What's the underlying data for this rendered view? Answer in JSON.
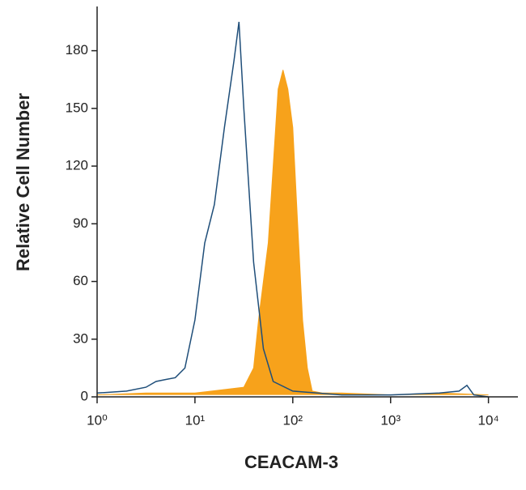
{
  "chart_data": {
    "type": "histogram-overlay",
    "xlabel": "CEACAM-3",
    "ylabel": "Relative Cell Number",
    "xscale": "log",
    "xlim": [
      1,
      20000
    ],
    "ylim": [
      0,
      203
    ],
    "xticks": [
      {
        "value": 1,
        "label": "10⁰"
      },
      {
        "value": 10,
        "label": "10¹"
      },
      {
        "value": 100,
        "label": "10²"
      },
      {
        "value": 1000,
        "label": "10³"
      },
      {
        "value": 10000,
        "label": "10⁴"
      }
    ],
    "yticks": [
      0,
      30,
      60,
      90,
      120,
      150,
      180
    ],
    "series": [
      {
        "color": "#f7a21b",
        "fill": true,
        "x": [
          1,
          3.16,
          10,
          31.6,
          39.8,
          44.7,
          50.1,
          56.2,
          63.1,
          70.8,
          79.4,
          89.1,
          100,
          112,
          126,
          141,
          158,
          200,
          316,
          1000,
          3160,
          10000
        ],
        "values": [
          1,
          2,
          2,
          5,
          15,
          40,
          60,
          80,
          120,
          160,
          170,
          160,
          140,
          90,
          40,
          15,
          3,
          2,
          2,
          1,
          2,
          1
        ]
      },
      {
        "color": "#1f4e79",
        "fill": false,
        "x": [
          1,
          2,
          3.16,
          4,
          5,
          6.3,
          7.9,
          10,
          12.6,
          15.8,
          20,
          25.1,
          28.2,
          31.6,
          39.8,
          50.1,
          63.1,
          100,
          316,
          1000,
          3160,
          5010,
          6030,
          7080,
          10000
        ],
        "values": [
          2,
          3,
          5,
          8,
          9,
          10,
          15,
          40,
          80,
          100,
          140,
          175,
          195,
          150,
          70,
          25,
          8,
          3,
          1,
          1,
          2,
          3,
          6,
          1,
          0
        ]
      }
    ]
  }
}
